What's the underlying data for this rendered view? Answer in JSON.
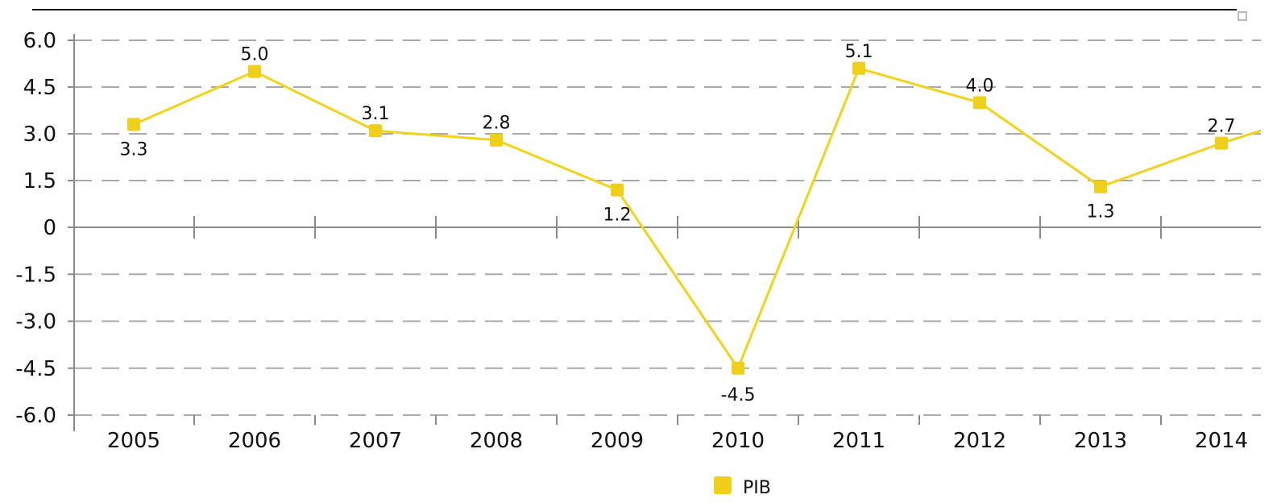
{
  "chart_data": {
    "type": "line",
    "categories": [
      "2005",
      "2006",
      "2007",
      "2008",
      "2009",
      "2010",
      "2011",
      "2012",
      "2013",
      "2014"
    ],
    "series": [
      {
        "name": "PIB",
        "values": [
          3.3,
          5.0,
          3.1,
          2.8,
          1.2,
          -4.5,
          5.1,
          4.0,
          1.3,
          2.7
        ],
        "labels": [
          "3.3",
          "5.0",
          "3.1",
          "2.8",
          "1.2",
          "-4.5",
          "5.1",
          "4.0",
          "1.3",
          "2.7"
        ],
        "trailing_value": 3.1
      }
    ],
    "yticks": [
      "6.0",
      "4.5",
      "3.0",
      "1.5",
      "0",
      "-1.5",
      "-3.0",
      "-4.5",
      "-6.0"
    ],
    "ylim": [
      -6.0,
      6.0
    ],
    "grid": true,
    "legend_position": "bottom-center",
    "colors": {
      "line": "#f2d21b",
      "marker": "#f0cf1a",
      "grid": "#a9a9a9",
      "axis": "#8a8a8a"
    }
  }
}
